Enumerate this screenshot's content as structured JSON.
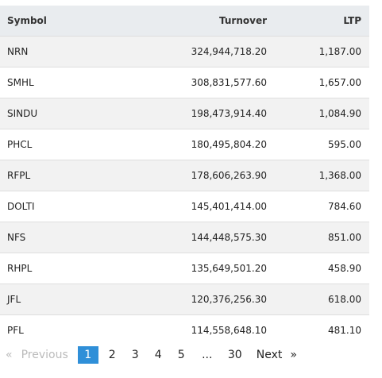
{
  "table": {
    "headers": {
      "symbol": "Symbol",
      "turnover": "Turnover",
      "ltp": "LTP"
    },
    "rows": [
      {
        "symbol": "NRN",
        "turnover": "324,944,718.20",
        "ltp": "1,187.00"
      },
      {
        "symbol": "SMHL",
        "turnover": "308,831,577.60",
        "ltp": "1,657.00"
      },
      {
        "symbol": "SINDU",
        "turnover": "198,473,914.40",
        "ltp": "1,084.90"
      },
      {
        "symbol": "PHCL",
        "turnover": "180,495,804.20",
        "ltp": "595.00"
      },
      {
        "symbol": "RFPL",
        "turnover": "178,606,263.90",
        "ltp": "1,368.00"
      },
      {
        "symbol": "DOLTI",
        "turnover": "145,401,414.00",
        "ltp": "784.60"
      },
      {
        "symbol": "NFS",
        "turnover": "144,448,575.30",
        "ltp": "851.00"
      },
      {
        "symbol": "RHPL",
        "turnover": "135,649,501.20",
        "ltp": "458.90"
      },
      {
        "symbol": "JFL",
        "turnover": "120,376,256.30",
        "ltp": "618.00"
      },
      {
        "symbol": "PFL",
        "turnover": "114,558,648.10",
        "ltp": "481.10"
      }
    ]
  },
  "pagination": {
    "prev_arrow": "«",
    "prev_label": "Previous",
    "pages": [
      "1",
      "2",
      "3",
      "4",
      "5"
    ],
    "active_page": "1",
    "ellipsis": "...",
    "last_page": "30",
    "next_label": "Next",
    "next_arrow": "»"
  },
  "colors": {
    "header_bg": "#e9ecef",
    "stripe_bg": "#f2f2f2",
    "active_page_bg": "#2f8fd8",
    "disabled_text": "#bbbbbb"
  }
}
